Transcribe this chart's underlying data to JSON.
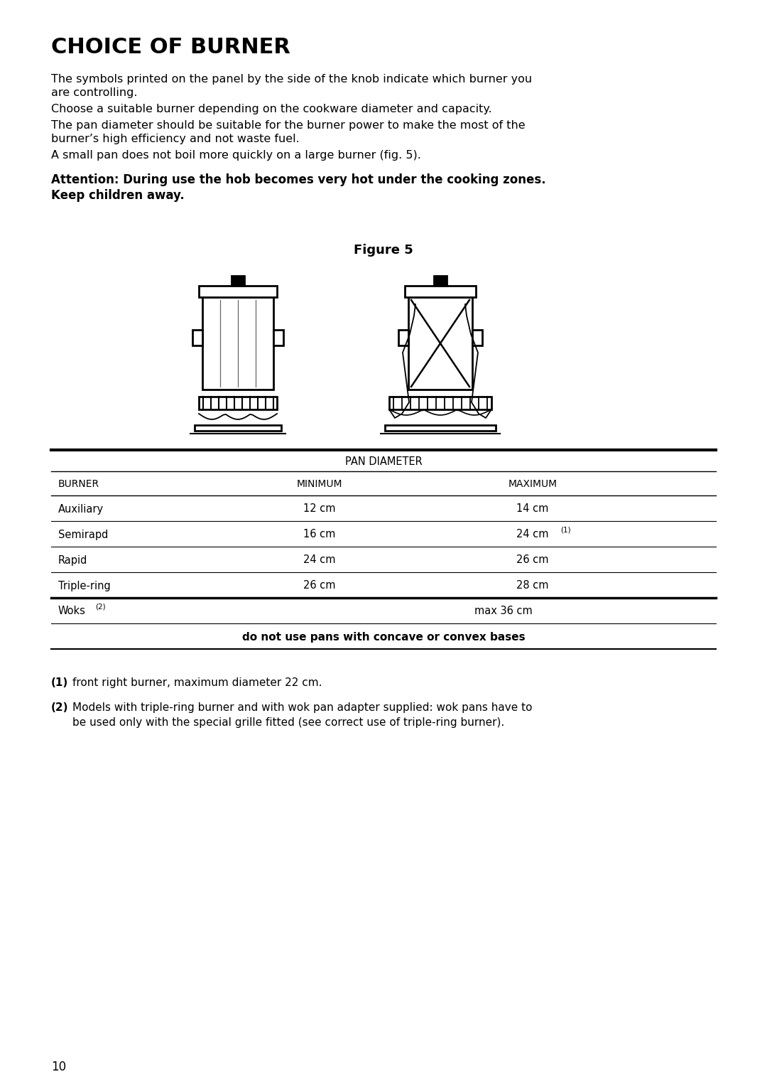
{
  "title": "CHOICE OF BURNER",
  "para1": "The symbols printed on the panel by the side of the knob indicate which burner you\nare controlling.",
  "para2": "Choose a suitable burner depending on the cookware diameter and capacity.",
  "para3": "The pan diameter should be suitable for the burner power to make the most of the\nburner’s high efficiency and not waste fuel.",
  "para4": "A small pan does not boil more quickly on a large burner (fig. 5).",
  "attention_line1": "Attention: During use the hob becomes very hot under the cooking zones.",
  "attention_line2": "Keep children away.",
  "figure_label": "Figure 5",
  "table_header_span": "PAN DIAMETER",
  "col_headers": [
    "BURNER",
    "MINIMUM",
    "MAXIMUM"
  ],
  "rows": [
    [
      "Auxiliary",
      "12 cm",
      "14 cm",
      false
    ],
    [
      "Semirapd",
      "16 cm",
      "24 cm",
      true
    ],
    [
      "Rapid",
      "24 cm",
      "26 cm",
      false
    ],
    [
      "Triple-ring",
      "26 cm",
      "28 cm",
      false
    ]
  ],
  "woks_label": "Woks",
  "woks_max": "max 36 cm",
  "note_text": "do not use pans with concave or convex bases",
  "fn1_bold": "(1)",
  "fn1_text": " front right burner, maximum diameter 22 cm.",
  "fn2_bold": "(2)",
  "fn2_text": " Models with triple-ring burner and with wok pan adapter supplied: wok pans have to\n     be used only with the special grille fitted (see correct use of triple-ring burner).",
  "page_number": "10",
  "bg_color": "#ffffff",
  "text_color": "#000000"
}
